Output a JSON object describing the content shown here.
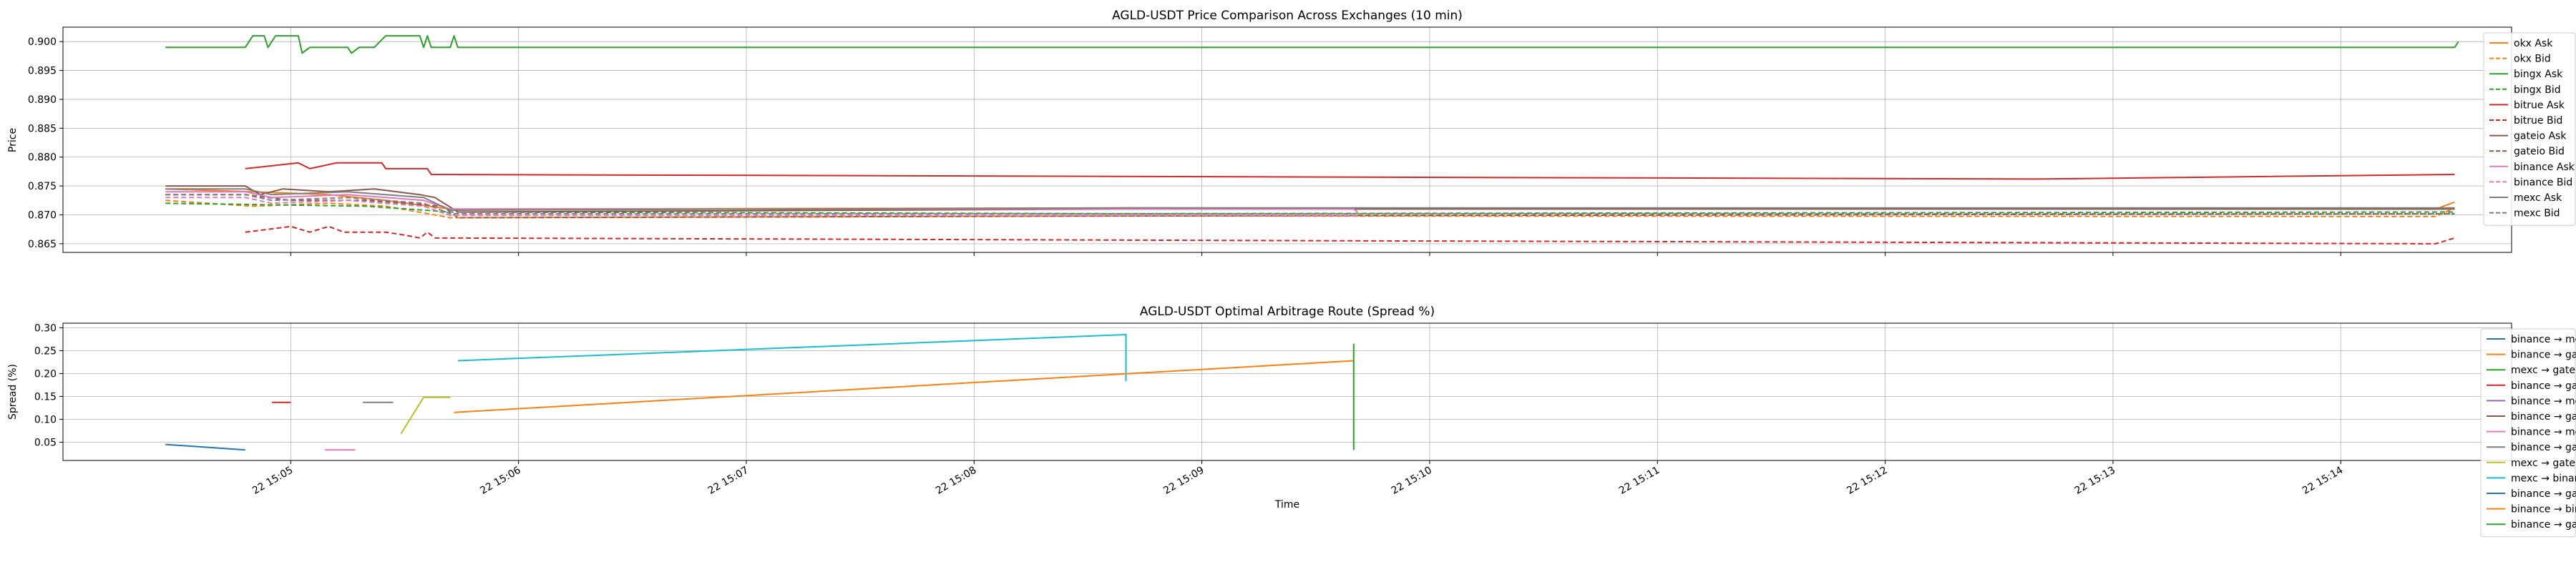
{
  "chart_data": [
    {
      "type": "line",
      "title": "AGLD-USDT Price Comparison Across Exchanges (10 min)",
      "xlabel": "",
      "ylabel": "Price",
      "xlim": [
        "15:04:00",
        "15:14:45"
      ],
      "ylim": [
        0.8635,
        0.9025
      ],
      "yticks": [
        "0.865",
        "0.870",
        "0.875",
        "0.880",
        "0.885",
        "0.890",
        "0.895",
        "0.900"
      ],
      "yticks_v": [
        0.865,
        0.87,
        0.875,
        0.88,
        0.885,
        0.89,
        0.895,
        0.9
      ],
      "grid": true,
      "legend_position": "top-right",
      "series": [
        {
          "name": "okx Ask",
          "color": "#ff7f0e",
          "dash": false,
          "points": [
            [
              "15:04:27",
              0.8745
            ],
            [
              "15:04:50",
              0.874
            ],
            [
              "15:05:10",
              0.8735
            ],
            [
              "15:05:25",
              0.8725
            ],
            [
              "15:05:42",
              0.871
            ],
            [
              "15:08:40",
              0.8712
            ],
            [
              "15:14:25",
              0.871
            ],
            [
              "15:14:30",
              0.8722
            ]
          ]
        },
        {
          "name": "okx Bid",
          "color": "#ff7f0e",
          "dash": true,
          "points": [
            [
              "15:04:27",
              0.8725
            ],
            [
              "15:04:50",
              0.8715
            ],
            [
              "15:05:10",
              0.872
            ],
            [
              "15:05:25",
              0.8715
            ],
            [
              "15:05:42",
              0.8695
            ],
            [
              "15:08:40",
              0.8698
            ],
            [
              "15:14:25",
              0.8697
            ],
            [
              "15:14:30",
              0.8712
            ]
          ]
        },
        {
          "name": "bingx Ask",
          "color": "#2ca02c",
          "dash": false,
          "points": [
            [
              "15:04:27",
              0.899
            ],
            [
              "15:04:48",
              0.899
            ],
            [
              "15:04:50",
              0.901
            ],
            [
              "15:04:53",
              0.901
            ],
            [
              "15:04:54",
              0.899
            ],
            [
              "15:04:56",
              0.901
            ],
            [
              "15:05:02",
              0.901
            ],
            [
              "15:05:03",
              0.898
            ],
            [
              "15:05:05",
              0.899
            ],
            [
              "15:05:15",
              0.899
            ],
            [
              "15:05:16",
              0.898
            ],
            [
              "15:05:18",
              0.899
            ],
            [
              "15:05:22",
              0.899
            ],
            [
              "15:05:25",
              0.901
            ],
            [
              "15:05:34",
              0.901
            ],
            [
              "15:05:35",
              0.899
            ],
            [
              "15:05:36",
              0.901
            ],
            [
              "15:05:37",
              0.899
            ],
            [
              "15:05:42",
              0.899
            ],
            [
              "15:05:43",
              0.901
            ],
            [
              "15:05:44",
              0.899
            ],
            [
              "15:14:30",
              0.899
            ],
            [
              "15:14:31",
              0.9
            ]
          ]
        },
        {
          "name": "bingx Bid",
          "color": "#2ca02c",
          "dash": true,
          "points": [
            [
              "15:04:27",
              0.872
            ],
            [
              "15:05:20",
              0.8715
            ],
            [
              "15:05:42",
              0.8705
            ],
            [
              "15:08:40",
              0.8702
            ],
            [
              "15:14:30",
              0.8705
            ]
          ]
        },
        {
          "name": "bitrue Ask",
          "color": "#d62728",
          "dash": false,
          "points": [
            [
              "15:04:48",
              0.878
            ],
            [
              "15:05:02",
              0.879
            ],
            [
              "15:05:05",
              0.878
            ],
            [
              "15:05:12",
              0.879
            ],
            [
              "15:05:24",
              0.879
            ],
            [
              "15:05:25",
              0.878
            ],
            [
              "15:05:36",
              0.878
            ],
            [
              "15:05:37",
              0.877
            ],
            [
              "15:12:40",
              0.8762
            ],
            [
              "15:14:30",
              0.877
            ]
          ]
        },
        {
          "name": "bitrue Bid",
          "color": "#d62728",
          "dash": true,
          "points": [
            [
              "15:04:48",
              0.867
            ],
            [
              "15:05:00",
              0.868
            ],
            [
              "15:05:05",
              0.867
            ],
            [
              "15:05:10",
              0.868
            ],
            [
              "15:05:14",
              0.867
            ],
            [
              "15:05:25",
              0.867
            ],
            [
              "15:05:30",
              0.8665
            ],
            [
              "15:05:34",
              0.866
            ],
            [
              "15:05:36",
              0.867
            ],
            [
              "15:05:38",
              0.866
            ],
            [
              "15:09:40",
              0.8655
            ],
            [
              "15:14:25",
              0.865
            ],
            [
              "15:14:30",
              0.866
            ]
          ]
        },
        {
          "name": "gateio Ask",
          "color": "#8c564b",
          "dash": false,
          "points": [
            [
              "15:04:27",
              0.875
            ],
            [
              "15:04:48",
              0.875
            ],
            [
              "15:04:52",
              0.8735
            ],
            [
              "15:04:58",
              0.8745
            ],
            [
              "15:05:10",
              0.874
            ],
            [
              "15:05:22",
              0.8745
            ],
            [
              "15:05:34",
              0.8735
            ],
            [
              "15:05:38",
              0.873
            ],
            [
              "15:05:44",
              0.8705
            ],
            [
              "15:08:40",
              0.871
            ],
            [
              "15:14:30",
              0.871
            ]
          ]
        },
        {
          "name": "gateio Bid",
          "color": "#8c564b",
          "dash": true,
          "points": [
            [
              "15:04:27",
              0.8735
            ],
            [
              "15:04:48",
              0.8735
            ],
            [
              "15:05:00",
              0.8725
            ],
            [
              "15:05:20",
              0.8725
            ],
            [
              "15:05:40",
              0.8715
            ],
            [
              "15:05:44",
              0.8695
            ],
            [
              "15:08:40",
              0.8698
            ],
            [
              "15:14:30",
              0.8702
            ]
          ]
        },
        {
          "name": "binance Ask",
          "color": "#e377c2",
          "dash": false,
          "points": [
            [
              "15:04:27",
              0.874
            ],
            [
              "15:04:48",
              0.874
            ],
            [
              "15:04:55",
              0.873
            ],
            [
              "15:05:15",
              0.8735
            ],
            [
              "15:05:35",
              0.8725
            ],
            [
              "15:05:42",
              0.871
            ],
            [
              "15:09:40",
              0.871
            ],
            [
              "15:09:41",
              0.8705
            ]
          ]
        },
        {
          "name": "binance Bid",
          "color": "#e377c2",
          "dash": true,
          "points": [
            [
              "15:04:27",
              0.873
            ],
            [
              "15:04:48",
              0.873
            ],
            [
              "15:04:55",
              0.872
            ],
            [
              "15:05:15",
              0.8725
            ],
            [
              "15:05:35",
              0.8715
            ],
            [
              "15:05:42",
              0.8699
            ],
            [
              "15:09:40",
              0.8699
            ],
            [
              "15:09:41",
              0.8698
            ]
          ]
        },
        {
          "name": "mexc Ask",
          "color": "#7f7f7f",
          "dash": false,
          "points": [
            [
              "15:04:27",
              0.8745
            ],
            [
              "15:04:48",
              0.8745
            ],
            [
              "15:04:55",
              0.8735
            ],
            [
              "15:05:15",
              0.874
            ],
            [
              "15:05:35",
              0.873
            ],
            [
              "15:05:42",
              0.8708
            ],
            [
              "15:08:40",
              0.8712
            ],
            [
              "15:14:30",
              0.8712
            ]
          ]
        },
        {
          "name": "mexc Bid",
          "color": "#7f7f7f",
          "dash": true,
          "points": [
            [
              "15:04:27",
              0.8735
            ],
            [
              "15:04:48",
              0.8735
            ],
            [
              "15:04:55",
              0.8725
            ],
            [
              "15:05:15",
              0.873
            ],
            [
              "15:05:35",
              0.872
            ],
            [
              "15:05:42",
              0.8702
            ],
            [
              "15:08:40",
              0.8702
            ],
            [
              "15:14:30",
              0.8702
            ]
          ]
        }
      ]
    },
    {
      "type": "line",
      "title": "AGLD-USDT Optimal Arbitrage Route (Spread %)",
      "xlabel": "Time",
      "ylabel": "Spread (%)",
      "xlim": [
        "15:04:00",
        "15:14:45"
      ],
      "ylim": [
        0.01,
        0.31
      ],
      "yticks": [
        "0.05",
        "0.10",
        "0.15",
        "0.20",
        "0.25",
        "0.30"
      ],
      "yticks_v": [
        0.05,
        0.1,
        0.15,
        0.2,
        0.25,
        0.3
      ],
      "xticks": [
        "22 15:05",
        "22 15:06",
        "22 15:07",
        "22 15:08",
        "22 15:09",
        "22 15:10",
        "22 15:11",
        "22 15:12",
        "22 15:13",
        "22 15:14"
      ],
      "xticks_v": [
        "15:05:00",
        "15:06:00",
        "15:07:00",
        "15:08:00",
        "15:09:00",
        "15:10:00",
        "15:11:00",
        "15:12:00",
        "15:13:00",
        "15:14:00"
      ],
      "grid": true,
      "legend_position": "top-right",
      "series": [
        {
          "name": "binance → mexc",
          "color": "#1f77b4",
          "points": [
            [
              "15:04:27",
              0.045
            ],
            [
              "15:04:48",
              0.033
            ]
          ]
        },
        {
          "name": "binance → gateio",
          "color": "#ff7f0e",
          "points": []
        },
        {
          "name": "mexc → gateio",
          "color": "#2ca02c",
          "points": []
        },
        {
          "name": "binance → gateio",
          "color": "#d62728",
          "points": [
            [
              "15:04:55",
              0.137
            ],
            [
              "15:05:00",
              0.137
            ]
          ]
        },
        {
          "name": "binance → mexc",
          "color": "#9467bd",
          "points": []
        },
        {
          "name": "binance → gateio",
          "color": "#8c564b",
          "points": []
        },
        {
          "name": "binance → mexc",
          "color": "#e377c2",
          "points": [
            [
              "15:05:09",
              0.033
            ],
            [
              "15:05:17",
              0.033
            ]
          ]
        },
        {
          "name": "binance → gateio",
          "color": "#7f7f7f",
          "points": [
            [
              "15:05:19",
              0.137
            ],
            [
              "15:05:27",
              0.137
            ]
          ]
        },
        {
          "name": "mexc → gateio",
          "color": "#bcbd22",
          "points": [
            [
              "15:05:29",
              0.068
            ],
            [
              "15:05:35",
              0.148
            ],
            [
              "15:05:42",
              0.148
            ]
          ]
        },
        {
          "name": "mexc → binance",
          "color": "#17becf",
          "points": [
            [
              "15:05:44",
              0.228
            ],
            [
              "15:08:40",
              0.285
            ],
            [
              "15:08:40",
              0.183
            ]
          ]
        },
        {
          "name": "binance → gateio",
          "color": "#1f77b4",
          "points": []
        },
        {
          "name": "binance → bingx",
          "color": "#ff7f0e",
          "points": [
            [
              "15:05:43",
              0.115
            ],
            [
              "15:09:40",
              0.228
            ]
          ]
        },
        {
          "name": "binance → gateio",
          "color": "#2ca02c",
          "points": [
            [
              "15:09:40",
              0.265
            ],
            [
              "15:09:40",
              0.033
            ]
          ]
        }
      ]
    }
  ]
}
